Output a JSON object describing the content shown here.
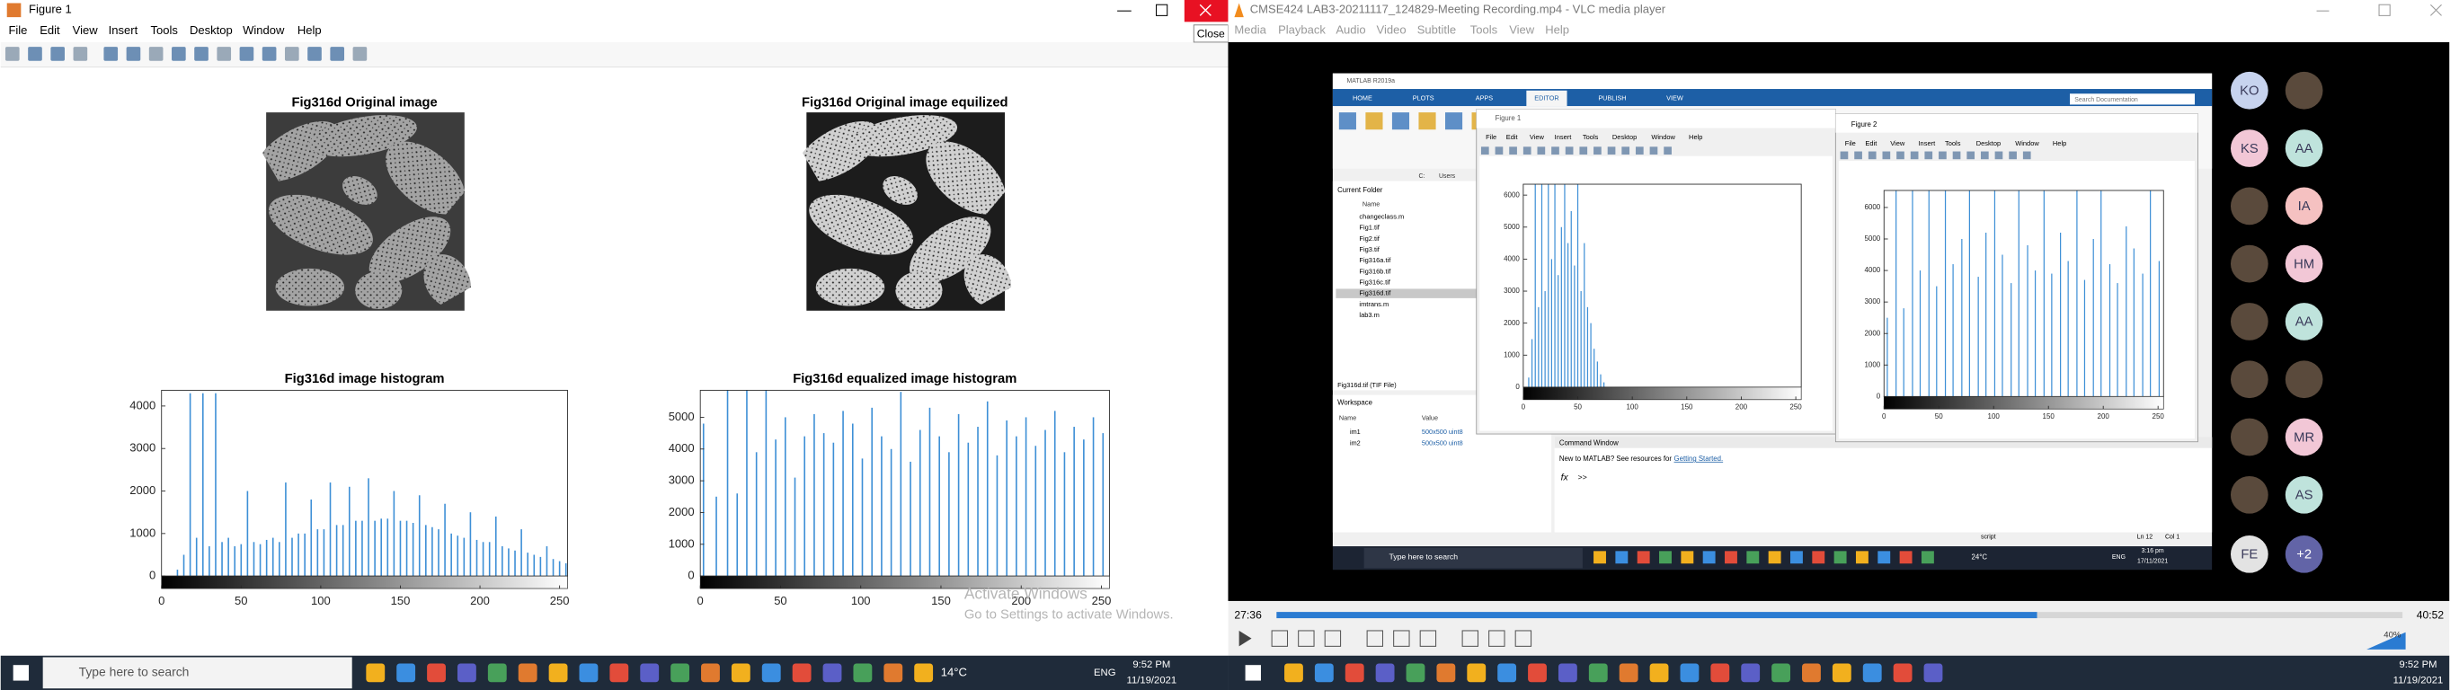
{
  "figure_window": {
    "title": "Figure 1",
    "menu": [
      "File",
      "Edit",
      "View",
      "Insert",
      "Tools",
      "Desktop",
      "Window",
      "Help"
    ],
    "close_tooltip": "Close",
    "image_titles": [
      "Fig316d Original image",
      "Fig316d Original image equilized"
    ]
  },
  "chart_data": [
    {
      "type": "bar",
      "title": "Fig316d image histogram",
      "x": [
        10,
        14,
        18,
        22,
        26,
        30,
        34,
        38,
        42,
        46,
        50,
        54,
        58,
        62,
        66,
        70,
        74,
        78,
        82,
        86,
        90,
        94,
        98,
        102,
        106,
        110,
        114,
        118,
        122,
        126,
        130,
        134,
        138,
        142,
        146,
        150,
        154,
        158,
        162,
        166,
        170,
        174,
        178,
        182,
        186,
        190,
        194,
        198,
        202,
        206,
        210,
        214,
        218,
        222,
        226,
        230,
        234,
        238,
        242,
        246,
        250,
        254
      ],
      "values": [
        150,
        500,
        4300,
        900,
        4300,
        700,
        4300,
        800,
        900,
        700,
        750,
        2000,
        800,
        750,
        850,
        900,
        800,
        2200,
        900,
        1000,
        1000,
        1800,
        1100,
        1100,
        2200,
        1200,
        1200,
        2100,
        1300,
        1300,
        2300,
        1300,
        1350,
        1350,
        2000,
        1300,
        1300,
        1250,
        1900,
        1200,
        1150,
        1100,
        1700,
        1000,
        950,
        900,
        1500,
        850,
        800,
        800,
        1400,
        700,
        650,
        600,
        1100,
        550,
        500,
        450,
        700,
        400,
        350,
        300
      ],
      "xlim": [
        0,
        255
      ],
      "ylim": [
        0,
        4370
      ],
      "xticks": [
        0,
        50,
        100,
        150,
        200,
        250
      ],
      "yticks": [
        0,
        1000,
        2000,
        3000,
        4000
      ],
      "color": "#3d8fd6"
    },
    {
      "type": "bar",
      "title": "Fig316d equalized image histogram",
      "x": [
        2,
        10,
        17,
        23,
        29,
        35,
        41,
        47,
        53,
        59,
        65,
        71,
        77,
        83,
        89,
        95,
        101,
        107,
        113,
        119,
        125,
        131,
        137,
        143,
        149,
        155,
        161,
        167,
        173,
        179,
        185,
        191,
        197,
        203,
        209,
        215,
        221,
        227,
        233,
        239,
        245,
        251
      ],
      "values": [
        4800,
        2500,
        5850,
        2600,
        5850,
        3900,
        5850,
        4300,
        5000,
        3100,
        4400,
        5100,
        4500,
        4200,
        5200,
        4800,
        3700,
        5300,
        4400,
        4000,
        5800,
        3600,
        4600,
        5300,
        4400,
        3900,
        5100,
        4200,
        4700,
        5500,
        3800,
        4900,
        4400,
        5000,
        4100,
        4600,
        5200,
        3900,
        4700,
        4300,
        5000,
        4500
      ],
      "xlim": [
        0,
        255
      ],
      "ylim": [
        0,
        5850
      ],
      "xticks": [
        0,
        50,
        100,
        150,
        200,
        250
      ],
      "yticks": [
        0,
        1000,
        2000,
        3000,
        4000,
        5000
      ],
      "color": "#3d8fd6"
    },
    {
      "type": "bar",
      "x": [
        5,
        8,
        11,
        14,
        17,
        20,
        23,
        26,
        29,
        32,
        35,
        38,
        41,
        44,
        47,
        50,
        53,
        56,
        59,
        62,
        65,
        68,
        71,
        74
      ],
      "values": [
        300,
        1500,
        6340,
        2500,
        6340,
        3000,
        6340,
        4000,
        6340,
        3500,
        5000,
        6340,
        4500,
        5500,
        3800,
        6340,
        3000,
        4500,
        2500,
        2000,
        1200,
        800,
        400,
        150
      ],
      "xlim": [
        0,
        255
      ],
      "ylim": [
        0,
        6340
      ],
      "xticks": [
        0,
        50,
        100,
        150,
        200,
        250
      ],
      "yticks": [
        0,
        1000,
        2000,
        3000,
        4000,
        5000,
        6000
      ],
      "color": "#3d8fd6"
    },
    {
      "type": "bar",
      "x": [
        3,
        11,
        18,
        26,
        33,
        41,
        48,
        56,
        63,
        71,
        78,
        86,
        93,
        101,
        108,
        116,
        123,
        131,
        138,
        146,
        153,
        161,
        168,
        176,
        183,
        191,
        198,
        206,
        213,
        221,
        228,
        236,
        243,
        251
      ],
      "values": [
        2500,
        6540,
        2800,
        6540,
        4000,
        6540,
        3500,
        6540,
        4200,
        5000,
        6540,
        3800,
        5200,
        6540,
        4500,
        3600,
        6540,
        4800,
        4000,
        6540,
        3900,
        5200,
        4300,
        6540,
        3700,
        5000,
        6540,
        4200,
        3600,
        5400,
        4700,
        3900,
        6540,
        4300
      ],
      "xlim": [
        0,
        255
      ],
      "ylim": [
        0,
        6540
      ],
      "xticks": [
        0,
        50,
        100,
        150,
        200,
        250
      ],
      "yticks": [
        0,
        1000,
        2000,
        3000,
        4000,
        5000,
        6000
      ],
      "color": "#3d8fd6"
    }
  ],
  "watermark": {
    "line1": "Activate Windows",
    "line2": "Go to Settings to activate Windows."
  },
  "taskbar_left": {
    "search": "Type here to search",
    "temperature": "14°C",
    "language": "ENG",
    "time": "9:52 PM",
    "date": "11/19/2021"
  },
  "vlc": {
    "title": "CMSE424 LAB3-20211117_124829-Meeting Recording.mp4 - VLC media player",
    "menu": [
      "Media",
      "Playback",
      "Audio",
      "Video",
      "Subtitle",
      "Tools",
      "View",
      "Help"
    ],
    "elapsed": "27:36",
    "duration": "40:52",
    "volume": "40%"
  },
  "shared_screen": {
    "matlab_title": "MATLAB R2019a",
    "tabs": [
      "HOME",
      "PLOTS",
      "APPS",
      "EDITOR",
      "PUBLISH",
      "VIEW"
    ],
    "search": "Search Documentation",
    "path": [
      "C:",
      "Users"
    ],
    "current_folder": "Current Folder",
    "name_header": "Name",
    "files": [
      "changeclass.m",
      "Fig1.tif",
      "Fig2.tif",
      "Fig3.tif",
      "Fig316a.tif",
      "Fig316b.tif",
      "Fig316c.tif",
      "Fig316d.tif",
      "imtrans.m",
      "lab3.m"
    ],
    "file_info": "Fig316d.tif (TIF File)",
    "workspace": "Workspace",
    "workspace_headers": [
      "Name",
      "Value"
    ],
    "variables": [
      {
        "name": "im1",
        "value": "500x500 uint8"
      },
      {
        "name": "im2",
        "value": "500x500 uint8"
      }
    ],
    "figure_titles": [
      "Figure 1",
      "Figure 2"
    ],
    "figure_menu": [
      "File",
      "Edit",
      "View",
      "Insert",
      "Tools",
      "Desktop",
      "Window",
      "Help"
    ],
    "command_window": "Command Window",
    "command_hint": "New to MATLAB? See resources for",
    "command_link": "Getting Started.",
    "prompt_icon": "fx",
    "prompt": ">>",
    "status": "script",
    "line": "Ln 12",
    "column": "Col 1",
    "taskbar": {
      "search": "Type here to search",
      "temperature": "24°C",
      "language": "ENG",
      "time": "3:16 pm",
      "date": "17/11/2021"
    }
  },
  "participants": [
    "KO",
    "KS",
    "AA",
    "IA",
    "HM",
    "AA",
    "MR",
    "AS",
    "FE",
    "+2"
  ],
  "taskbar_right": {
    "time": "9:52 PM",
    "date": "11/19/2021"
  }
}
